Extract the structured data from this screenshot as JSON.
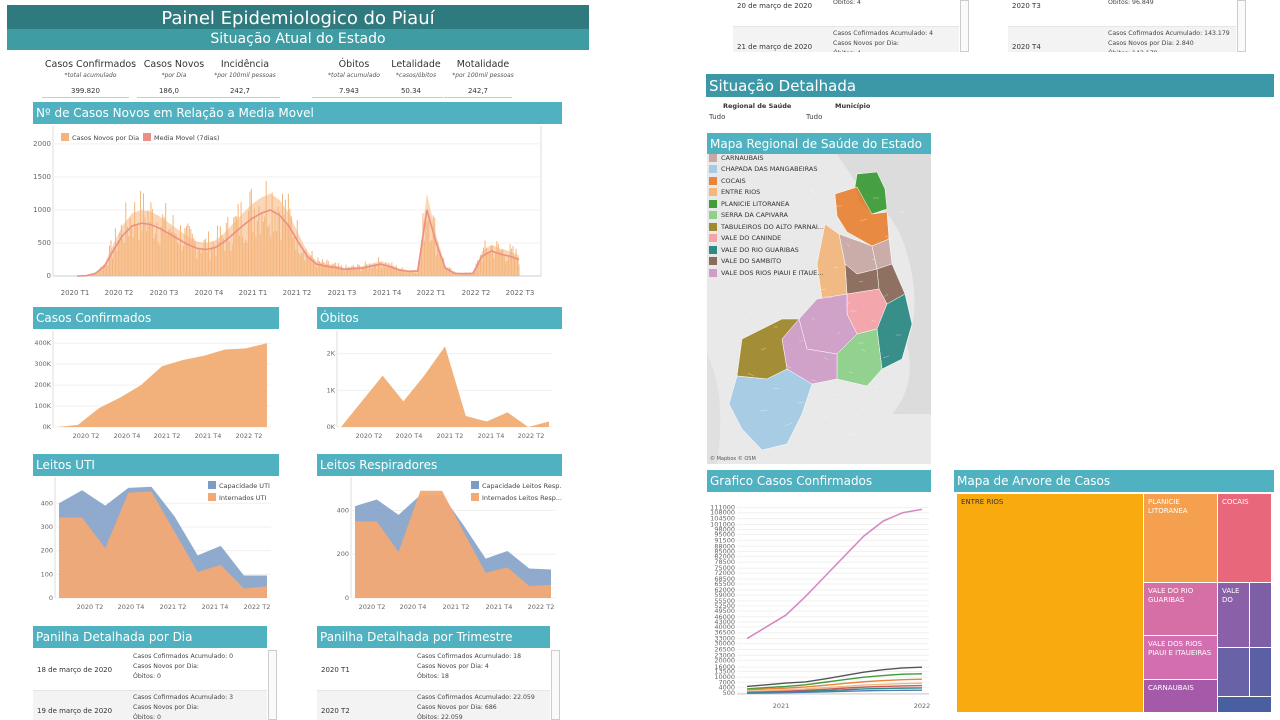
{
  "header": {
    "title": "Painel Epidemiologico do Piauí",
    "subtitle": "Situação Atual do Estado"
  },
  "kpis": [
    {
      "label": "Casos Confirmados",
      "sub": "*total acumulado",
      "value": "399.820"
    },
    {
      "label": "Casos Novos",
      "sub": "*por Dia",
      "value": "186,0"
    },
    {
      "label": "Incidência",
      "sub": "*por 100mil pessoas",
      "value": "242,7"
    },
    {
      "label": "Óbitos",
      "sub": "*total acumulado",
      "value": "7.943"
    },
    {
      "label": "Letalidade",
      "sub": "*casos/óbitos",
      "value": "50.34"
    },
    {
      "label": "Motalidade",
      "sub": "*por 100mil pessoas",
      "value": "242,7"
    }
  ],
  "sections": {
    "novos": "Nº de Casos Novos em Relação a Media Movel",
    "confirmados": "Casos Confirmados",
    "obitos": "Óbitos",
    "uti": "Leitos UTI",
    "respiradores": "Leitos Respiradores",
    "dia": "Panilha Detalhada por Dia",
    "trimestre": "Panilha Detalhada por Trimestre",
    "detalhada": "Situação Detalhada",
    "mapa": "Mapa Regional de Saúde do Estado",
    "grafico": "Grafico Casos Confirmados",
    "arvore": "Mapa de Arvore de Casos"
  },
  "filters": {
    "regional_label": "Regional de Saúde",
    "regional_value": "Tudo",
    "municipio_label": "Município",
    "municipio_value": "Tudo"
  },
  "map_attribution": "© Mapbox © OSM",
  "map_legend": [
    {
      "name": "CARNAUBAIS",
      "color": "#c9a9a6"
    },
    {
      "name": "CHAPADA DAS MANGABEIRAS",
      "color": "#a6cbe5"
    },
    {
      "name": "COCAIS",
      "color": "#e8853a"
    },
    {
      "name": "ENTRE RIOS",
      "color": "#f2b880"
    },
    {
      "name": "PLANICIE LITORANEA",
      "color": "#3f9d3a"
    },
    {
      "name": "SERRA DA CAPIVARA",
      "color": "#8fd18a"
    },
    {
      "name": "TABULEIROS DO ALTO PARNAI...",
      "color": "#a08a2e"
    },
    {
      "name": "VALE DO CANINDE",
      "color": "#f4a3a8"
    },
    {
      "name": "VALE DO RIO GUARIBAS",
      "color": "#2f8a83"
    },
    {
      "name": "VALE DO SAMBITO",
      "color": "#8b6b5a"
    },
    {
      "name": "VALE DOS RIOS PIAUI E ITAUE...",
      "color": "#cf9ec8"
    }
  ],
  "daily_table": [
    {
      "date": "18 de março de 2020",
      "lines": [
        "Casos Cofirmados Acumulado: 0",
        "Casos Novos por Dia:",
        "Óbitos: 0"
      ]
    },
    {
      "date": "19 de março de 2020",
      "lines": [
        "Casos Cofirmados Acumulado: 3",
        "Casos Novos por Dia:",
        "Óbitos: 0"
      ]
    },
    {
      "date": "20 de março de 2020",
      "lines": [
        "Casos Novos por Dia:",
        "Óbitos: 4"
      ]
    },
    {
      "date": "21 de março de 2020",
      "lines": [
        "Casos Cofirmados Acumulado: 4",
        "Casos Novos por Dia:",
        "Óbitos: 4"
      ]
    }
  ],
  "quarter_table": [
    {
      "date": "2020 T1",
      "lines": [
        "Casos Cofirmados Acumulado: 18",
        "Casos Novos por Dia: 4",
        "Óbitos: 18"
      ]
    },
    {
      "date": "2020 T2",
      "lines": [
        "Casos Cofirmados Acumulado: 22.059",
        "Casos Novos por Dia: 686",
        "Óbitos: 22.059"
      ]
    },
    {
      "date": "2020 T3",
      "lines": [
        "Casos Novos por Dia: 2.127",
        "Óbitos: 96.849"
      ]
    },
    {
      "date": "2020 T4",
      "lines": [
        "Casos Cofirmados Acumulado: 143.179",
        "Casos Novos por Dia: 2.840",
        "Óbitos: 143.179"
      ]
    }
  ],
  "treemap": [
    {
      "name": "ENTRE RIOS",
      "color": "#f8aa0e",
      "dark": true
    },
    {
      "name": "PLANICIE LITORANEA",
      "color": "#f5a04f",
      "dark": false
    },
    {
      "name": "COCAIS",
      "color": "#e9677a",
      "dark": false
    },
    {
      "name": "VALE DO RIO GUARIBAS",
      "color": "#d56fa5",
      "dark": false
    },
    {
      "name": "VALE DO",
      "color": "#8a60a8",
      "dark": false
    },
    {
      "name": "VALE DOS RIOS PIAUI E ITAUEIRAS",
      "color": "#d36eb0",
      "dark": false
    },
    {
      "name": "CARNAUBAIS",
      "color": "#a45aa9",
      "dark": false
    },
    {
      "name": "",
      "color": "#6a62a6",
      "dark": false
    },
    {
      "name": "",
      "color": "#7c5fa6",
      "dark": false
    },
    {
      "name": "",
      "color": "#5b5fa3",
      "dark": false
    }
  ],
  "chart_data": [
    {
      "type": "area",
      "title": "Nº de Casos Novos em Relação a Media Movel",
      "legend": [
        "Casos Novos por Dia",
        "Media Movel (7dias)"
      ],
      "colors": [
        "#f5b47a",
        "#ec8f86"
      ],
      "x_ticks": [
        "2020 T1",
        "2020 T2",
        "2020 T3",
        "2020 T4",
        "2021 T1",
        "2021 T2",
        "2021 T3",
        "2021 T4",
        "2022 T1",
        "2022 T2",
        "2022 T3"
      ],
      "y_ticks": [
        0,
        500,
        1000,
        1500,
        2000
      ],
      "ylim": [
        0,
        2150
      ],
      "moving_average": [
        0,
        5,
        40,
        150,
        400,
        620,
        760,
        800,
        780,
        720,
        640,
        560,
        480,
        420,
        400,
        430,
        520,
        640,
        760,
        870,
        950,
        1000,
        920,
        760,
        520,
        300,
        180,
        150,
        130,
        100,
        110,
        120,
        150,
        180,
        140,
        90,
        70,
        75,
        1000,
        500,
        120,
        40,
        35,
        40,
        300,
        380,
        330,
        300,
        250
      ]
    },
    {
      "type": "area",
      "title": "Casos Confirmados",
      "x_ticks": [
        "2020 T2",
        "2020 T4",
        "2021 T2",
        "2021 T4",
        "2022 T2"
      ],
      "y_ticks": [
        "0K",
        "100K",
        "200K",
        "300K",
        "400K"
      ],
      "x": [
        "2020 T1",
        "2020 T2",
        "2020 T3",
        "2020 T4",
        "2021 T1",
        "2021 T2",
        "2021 T3",
        "2021 T4",
        "2022 T1",
        "2022 T2",
        "2022 T3"
      ],
      "values": [
        0,
        10,
        90,
        140,
        200,
        290,
        320,
        340,
        370,
        375,
        400
      ],
      "values_unit": "K",
      "ylim": [
        0,
        420
      ],
      "color": "#f2b07a"
    },
    {
      "type": "area",
      "title": "Óbitos",
      "x_ticks": [
        "2020 T2",
        "2020 T4",
        "2021 T2",
        "2021 T4",
        "2022 T2"
      ],
      "y_ticks": [
        "0K",
        "1K",
        "2K"
      ],
      "x": [
        "2020 T1",
        "2020 T2",
        "2020 T3",
        "2020 T4",
        "2021 T1",
        "2021 T2",
        "2021 T3",
        "2021 T4",
        "2022 T1",
        "2022 T2",
        "2022 T3"
      ],
      "values": [
        0,
        0.7,
        1.4,
        0.7,
        1.4,
        2.2,
        0.3,
        0.15,
        0.4,
        0.0,
        0.15
      ],
      "values_unit": "K",
      "ylim": [
        0,
        2.4
      ],
      "color": "#f2b07a"
    },
    {
      "type": "area",
      "title": "Leitos UTI",
      "legend": [
        "Capacidade UTI",
        "Internados UTI"
      ],
      "colors": [
        "#7d9bc4",
        "#f2a974"
      ],
      "x_ticks": [
        "2020 T2",
        "2020 T4",
        "2021 T2",
        "2021 T4",
        "2022 T2"
      ],
      "y_ticks": [
        0,
        100,
        200,
        300,
        400
      ],
      "x": [
        "2020 T2",
        "2020 T3",
        "2020 T4",
        "2021 T1",
        "2021 T2",
        "2021 T3",
        "2021 T4",
        "2022 T1",
        "2022 T2",
        "2022 T3"
      ],
      "series": [
        {
          "name": "Capacidade UTI",
          "values": [
            400,
            455,
            390,
            465,
            470,
            345,
            180,
            220,
            95,
            95
          ]
        },
        {
          "name": "Internados UTI",
          "values": [
            340,
            340,
            210,
            445,
            450,
            280,
            110,
            140,
            40,
            50
          ]
        }
      ],
      "ylim": [
        0,
        490
      ]
    },
    {
      "type": "area",
      "title": "Leitos Respiradores",
      "legend": [
        "Capacidade Leitos Resp...",
        "Internados Leitos Resp..."
      ],
      "colors": [
        "#7d9bc4",
        "#f2a974"
      ],
      "x_ticks": [
        "2020 T2",
        "2020 T4",
        "2021 T2",
        "2021 T4",
        "2022 T2"
      ],
      "y_ticks": [
        0,
        200,
        400
      ],
      "x": [
        "2020 T2",
        "2020 T3",
        "2020 T4",
        "2021 T1",
        "2021 T2",
        "2021 T3",
        "2021 T4",
        "2022 T1",
        "2022 T2",
        "2022 T3"
      ],
      "series": [
        {
          "name": "Capacidade Leitos Respiradores",
          "values": [
            420,
            450,
            380,
            470,
            470,
            330,
            180,
            215,
            135,
            130
          ]
        },
        {
          "name": "Internados Leitos Respiradores",
          "values": [
            350,
            350,
            210,
            490,
            490,
            300,
            115,
            140,
            55,
            60
          ]
        }
      ],
      "ylim": [
        0,
        530
      ]
    },
    {
      "type": "line",
      "title": "Grafico Casos Confirmados",
      "x_ticks": [
        "2021",
        "2022"
      ],
      "y_ticks": [
        500,
        4000,
        7000,
        10000,
        13500,
        16000,
        20000,
        23000,
        26500,
        30000,
        33000,
        36500,
        40000,
        43000,
        46000,
        49500,
        52500,
        55500,
        59000,
        62000,
        65500,
        68500,
        72000,
        75000,
        78500,
        82000,
        85000,
        88000,
        91500,
        95000,
        98000,
        101000,
        104500,
        108000,
        111000
      ],
      "x": [
        "2020 T2",
        "2020 T3",
        "2020 T4",
        "2021 T1",
        "2021 T2",
        "2021 T3",
        "2021 T4",
        "2022 T1",
        "2022 T2",
        "2022 T3"
      ],
      "series": [
        {
          "name": "ENTRE RIOS",
          "color": "#d58ac0",
          "values": [
            33000,
            40000,
            47000,
            58000,
            70000,
            82000,
            94000,
            103000,
            108000,
            110000
          ]
        },
        {
          "name": "PLANICIE LITORANEA",
          "color": "#555555",
          "values": [
            4500,
            5500,
            6500,
            7200,
            9000,
            11000,
            13000,
            14500,
            15500,
            16000
          ]
        },
        {
          "name": "COCAIS",
          "color": "#3f9d3a",
          "values": [
            3000,
            3800,
            4500,
            5500,
            7000,
            8500,
            10000,
            11000,
            11800,
            12000
          ]
        },
        {
          "name": "VALE DO RIO GUARIBAS",
          "color": "#e8853a",
          "values": [
            2500,
            3000,
            3500,
            4200,
            5200,
            6300,
            7300,
            8000,
            8500,
            8800
          ]
        },
        {
          "name": "VALE DOS RIOS PIAUI E ITAUEIRAS",
          "color": "#f2b880",
          "values": [
            1500,
            2000,
            2500,
            3000,
            3800,
            4500,
            5300,
            5800,
            6200,
            6400
          ]
        },
        {
          "name": "CARNAUBAIS",
          "color": "#c95a5a",
          "values": [
            1000,
            1300,
            1700,
            2200,
            2800,
            3500,
            4100,
            4500,
            4800,
            5000
          ]
        },
        {
          "name": "VALE DO SAMBITO",
          "color": "#2f8a83",
          "values": [
            700,
            900,
            1200,
            1600,
            2000,
            2500,
            3000,
            3300,
            3500,
            3600
          ]
        },
        {
          "name": "CHAPADA DAS MANGABEIRAS",
          "color": "#4f7fb5",
          "values": [
            400,
            600,
            800,
            1000,
            1300,
            1600,
            1900,
            2100,
            2200,
            2300
          ]
        }
      ],
      "ylim": [
        0,
        112000
      ]
    }
  ]
}
